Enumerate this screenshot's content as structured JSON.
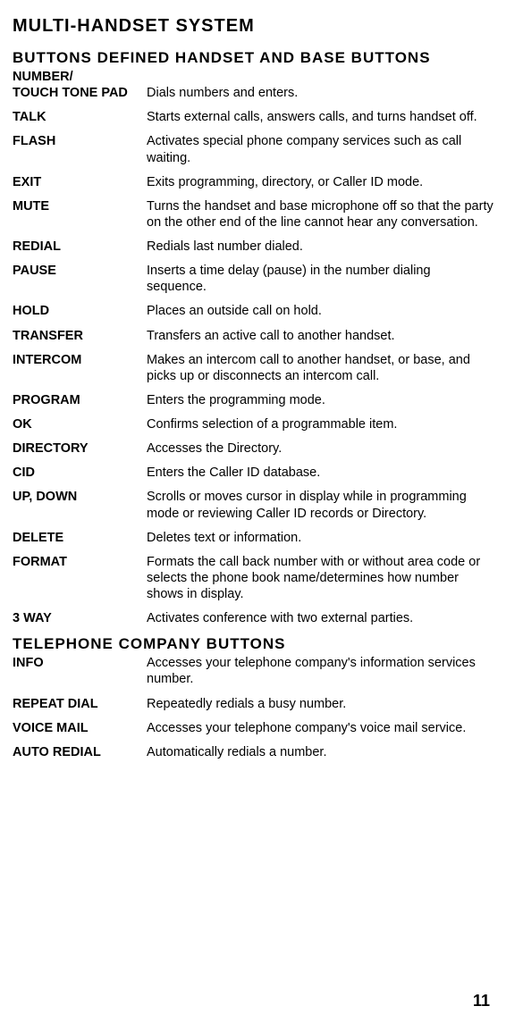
{
  "title": "MULTI-HANDSET SYSTEM",
  "section1_title": "BUTTONS DEFINED HANDSET AND BASE BUTTONS",
  "section1_rows": [
    {
      "label": "NUMBER/\nTOUCH TONE PAD",
      "desc": "Dials numbers and enters."
    },
    {
      "label": "TALK",
      "desc": "Starts external calls, answers calls, and turns handset off."
    },
    {
      "label": "FLASH",
      "desc": "Activates special phone company services such as call waiting."
    },
    {
      "label": "EXIT",
      "desc": "Exits programming, directory, or Caller ID mode."
    },
    {
      "label": "MUTE",
      "desc": "Turns the handset and base microphone off so that the party on the other end of the line cannot hear any conversation."
    },
    {
      "label": "REDIAL",
      "desc": "Redials last number dialed."
    },
    {
      "label": "PAUSE",
      "desc": "Inserts a time delay (pause) in the number dialing sequence."
    },
    {
      "label": "HOLD",
      "desc": "Places an outside call on hold."
    },
    {
      "label": "TRANSFER",
      "desc": "Transfers an active call to another handset."
    },
    {
      "label": "INTERCOM",
      "desc": "Makes an intercom call to another handset, or base, and picks up or disconnects an intercom call."
    },
    {
      "label": "PROGRAM",
      "desc": "Enters the programming mode."
    },
    {
      "label": "OK",
      "desc": "Confirms selection of a programmable item."
    },
    {
      "label": "DIRECTORY",
      "desc": "Accesses the Directory."
    },
    {
      "label": "CID",
      "desc": "Enters the Caller ID database."
    },
    {
      "label": "UP, DOWN",
      "desc": "Scrolls or moves cursor in display while in programming mode or reviewing Caller ID records or Directory."
    },
    {
      "label": "DELETE",
      "desc": "Deletes text or information."
    },
    {
      "label": "FORMAT",
      "desc": "Formats the call back number with or without area code or selects the phone book name/determines how number shows in display."
    },
    {
      "label": "3 WAY",
      "desc": "Activates conference with two external parties."
    }
  ],
  "section2_title": "TELEPHONE COMPANY BUTTONS",
  "section2_rows": [
    {
      "label": "INFO",
      "desc": "Accesses your telephone company's information services number."
    },
    {
      "label": "REPEAT DIAL",
      "desc": "Repeatedly redials a busy number."
    },
    {
      "label": "VOICE MAIL",
      "desc": "Accesses your telephone company's voice mail service."
    },
    {
      "label": "AUTO REDIAL",
      "desc": "Automatically redials a number."
    }
  ],
  "page_number": "11"
}
